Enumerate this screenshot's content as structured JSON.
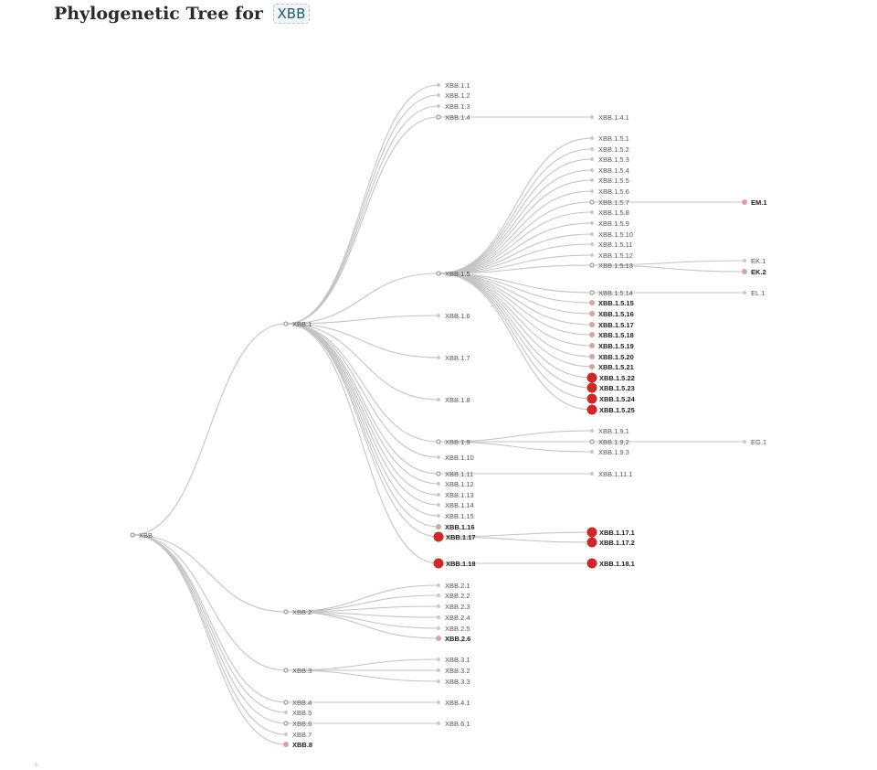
{
  "header": {
    "title": "Phylogenetic Tree for",
    "lineage": "XBB"
  },
  "colors": {
    "link": "#c4c4c4",
    "node": "#9a9a9a",
    "node_light": "#c9c9c9",
    "node_pink": "#d6a3a3",
    "node_red": "#cc2a2a",
    "highlight_text": "#222222"
  },
  "corner_mark": "+",
  "tree": {
    "name": "XBB",
    "children": [
      {
        "name": "XBB.1",
        "children": [
          {
            "name": "XBB.1.1"
          },
          {
            "name": "XBB.1.2"
          },
          {
            "name": "XBB.1.3"
          },
          {
            "name": "XBB.1.4",
            "children": [
              {
                "name": "XBB.1.4.1"
              }
            ]
          },
          {
            "name": "XBB.1.5",
            "children": [
              {
                "name": "XBB.1.5.1"
              },
              {
                "name": "XBB.1.5.2"
              },
              {
                "name": "XBB.1.5.3"
              },
              {
                "name": "XBB.1.5.4"
              },
              {
                "name": "XBB.1.5.5"
              },
              {
                "name": "XBB.1.5.6"
              },
              {
                "name": "XBB.1.5.7",
                "children": [
                  {
                    "name": "EM.1",
                    "status": "pink"
                  }
                ]
              },
              {
                "name": "XBB.1.5.8"
              },
              {
                "name": "XBB.1.5.9"
              },
              {
                "name": "XBB.1.5.10"
              },
              {
                "name": "XBB.1.5.11"
              },
              {
                "name": "XBB.1.5.12"
              },
              {
                "name": "XBB.1.5.13",
                "children": [
                  {
                    "name": "EK.1"
                  },
                  {
                    "name": "EK.2",
                    "status": "pink"
                  }
                ]
              },
              {
                "name": "XBB.1.5.14",
                "children": [
                  {
                    "name": "EL.1"
                  }
                ]
              },
              {
                "name": "XBB.1.5.15",
                "status": "pink"
              },
              {
                "name": "XBB.1.5.16",
                "status": "pink"
              },
              {
                "name": "XBB.1.5.17",
                "status": "pink"
              },
              {
                "name": "XBB.1.5.18",
                "status": "pink"
              },
              {
                "name": "XBB.1.5.19",
                "status": "pink"
              },
              {
                "name": "XBB.1.5.20",
                "status": "pink"
              },
              {
                "name": "XBB.1.5.21",
                "status": "pink"
              },
              {
                "name": "XBB.1.5.22",
                "status": "red"
              },
              {
                "name": "XBB.1.5.23",
                "status": "red"
              },
              {
                "name": "XBB.1.5.24",
                "status": "red"
              },
              {
                "name": "XBB.1.5.25",
                "status": "red"
              }
            ]
          },
          {
            "name": "XBB.1.6"
          },
          {
            "name": "XBB.1.7"
          },
          {
            "name": "XBB.1.8"
          },
          {
            "name": "XBB.1.9",
            "children": [
              {
                "name": "XBB.1.9.1"
              },
              {
                "name": "XBB.1.9.2",
                "children": [
                  {
                    "name": "EG.1"
                  }
                ]
              },
              {
                "name": "XBB.1.9.3"
              }
            ]
          },
          {
            "name": "XBB.1.10"
          },
          {
            "name": "XBB.1.11",
            "children": [
              {
                "name": "XBB.1.11.1"
              }
            ]
          },
          {
            "name": "XBB.1.12"
          },
          {
            "name": "XBB.1.13"
          },
          {
            "name": "XBB.1.14"
          },
          {
            "name": "XBB.1.15"
          },
          {
            "name": "XBB.1.16",
            "status": "pink"
          },
          {
            "name": "XBB.1.17",
            "status": "red",
            "children": [
              {
                "name": "XBB.1.17.1",
                "status": "red"
              },
              {
                "name": "XBB.1.17.2",
                "status": "red"
              }
            ]
          },
          {
            "name": "XBB.1.18",
            "status": "red",
            "children": [
              {
                "name": "XBB.1.18.1",
                "status": "red"
              }
            ]
          }
        ]
      },
      {
        "name": "XBB.2",
        "children": [
          {
            "name": "XBB.2.1"
          },
          {
            "name": "XBB.2.2"
          },
          {
            "name": "XBB.2.3"
          },
          {
            "name": "XBB.2.4"
          },
          {
            "name": "XBB.2.5"
          },
          {
            "name": "XBB.2.6",
            "status": "pink"
          }
        ]
      },
      {
        "name": "XBB.3",
        "children": [
          {
            "name": "XBB.3.1"
          },
          {
            "name": "XBB.3.2"
          },
          {
            "name": "XBB.3.3"
          }
        ]
      },
      {
        "name": "XBB.4",
        "children": [
          {
            "name": "XBB.4.1"
          }
        ]
      },
      {
        "name": "XBB.5"
      },
      {
        "name": "XBB.6",
        "children": [
          {
            "name": "XBB.6.1"
          }
        ]
      },
      {
        "name": "XBB.7"
      },
      {
        "name": "XBB.8",
        "status": "pink"
      }
    ]
  }
}
